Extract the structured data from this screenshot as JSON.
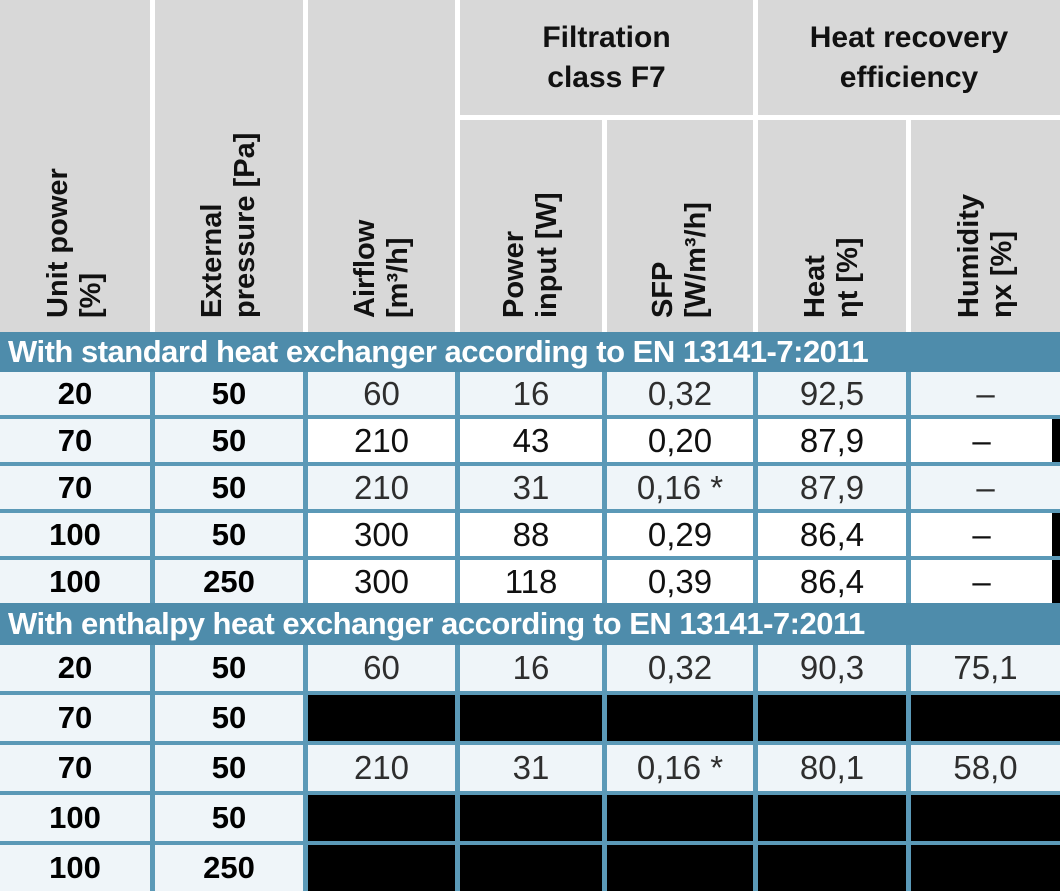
{
  "table": {
    "columns": [
      {
        "line1": "Unit power",
        "line2": "[%]"
      },
      {
        "line1": "External",
        "line2": "pressure [Pa]"
      },
      {
        "line1": "Airflow",
        "line2": "[m³/h]"
      },
      {
        "line1": "Power",
        "line2": "input [W]"
      },
      {
        "line1": "SFP",
        "line2": "[W/m³/h]"
      },
      {
        "line1": "Heat",
        "line2": "ηt [%]"
      },
      {
        "line1": "Humidity",
        "line2": "ηx [%]"
      }
    ],
    "groups": [
      {
        "line1": "Filtration",
        "line2": "class F7",
        "spans": [
          "Power input [W]",
          "SFP [W/m³/h]"
        ]
      },
      {
        "line1": "Heat recovery",
        "line2": "efficiency",
        "spans": [
          "Heat ηt [%]",
          "Humidity ηx [%]"
        ]
      }
    ],
    "sections": [
      {
        "title": "With standard heat exchanger according to EN 13141-7:2011",
        "rows": [
          {
            "style": "normal",
            "cells": [
              "20",
              "50",
              "60",
              "16",
              "0,32",
              "92,5",
              "–"
            ]
          },
          {
            "style": "highlight",
            "cells": [
              "70",
              "50",
              "210",
              "43",
              "0,20",
              "87,9",
              "–"
            ]
          },
          {
            "style": "normal",
            "cells": [
              "70",
              "50",
              "210",
              "31",
              "0,16 *",
              "87,9",
              "–"
            ]
          },
          {
            "style": "highlight",
            "cells": [
              "100",
              "50",
              "300",
              "88",
              "0,29",
              "86,4",
              "–"
            ]
          },
          {
            "style": "highlight",
            "cells": [
              "100",
              "250",
              "300",
              "118",
              "0,39",
              "86,4",
              "–"
            ]
          }
        ]
      },
      {
        "title": "With enthalpy heat exchanger according to EN 13141-7:2011",
        "rows": [
          {
            "style": "normal",
            "cells": [
              "20",
              "50",
              "60",
              "16",
              "0,32",
              "90,3",
              "75,1"
            ]
          },
          {
            "style": "redacted",
            "cells": [
              "70",
              "50",
              "",
              "",
              "",
              "",
              ""
            ]
          },
          {
            "style": "normal",
            "cells": [
              "70",
              "50",
              "210",
              "31",
              "0,16 *",
              "80,1",
              "58,0"
            ]
          },
          {
            "style": "redacted",
            "cells": [
              "100",
              "50",
              "",
              "",
              "",
              "",
              ""
            ]
          },
          {
            "style": "redacted",
            "cells": [
              "100",
              "250",
              "",
              "",
              "",
              "",
              ""
            ]
          }
        ]
      }
    ],
    "colors": {
      "section_bar_blue": "#4e8cab",
      "grid_line_blue": "#5b99b7",
      "row_background": "#eff5f9",
      "header_gray": "#d8d8d8",
      "highlight_white": "#ffffff",
      "redacted_black": "#000000"
    }
  }
}
